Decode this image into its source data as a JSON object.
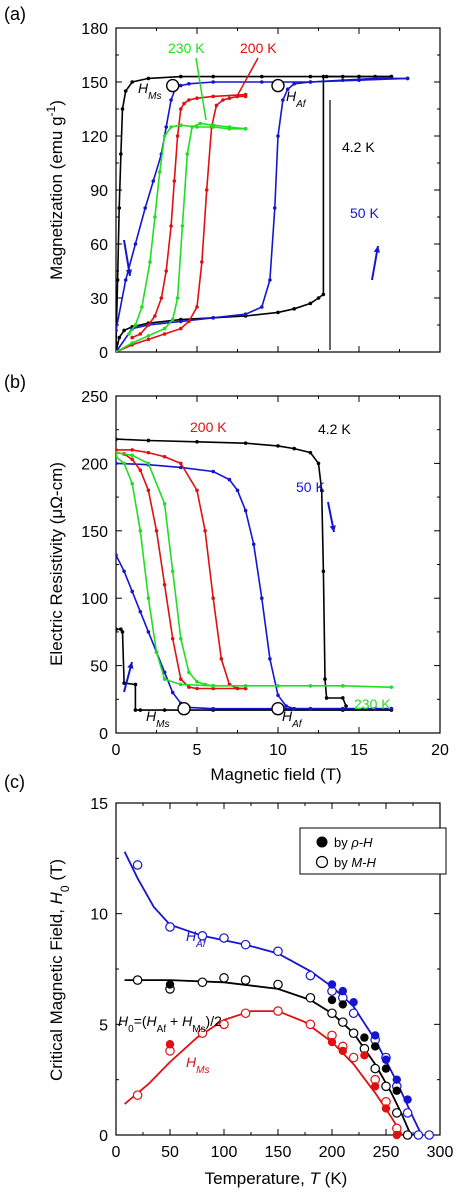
{
  "colors": {
    "black": "#000000",
    "blue": "#1515d0",
    "red": "#e01010",
    "green": "#22dd22"
  },
  "chart_data": [
    {
      "type": "line",
      "panel_label": "(a)",
      "xlabel": "",
      "ylabel": "Magnetization (emu g-1)",
      "xlim": [
        0,
        20
      ],
      "ylim": [
        0,
        180
      ],
      "yticks": [
        "0",
        "30",
        "60",
        "90",
        "120",
        "150",
        "180"
      ],
      "series": [
        {
          "name": "4.2 K",
          "color": "#000000",
          "x": [
            0,
            0.2,
            0.5,
            1,
            2,
            4,
            6,
            8,
            10,
            11,
            12,
            12.5,
            12.8,
            12.8,
            13,
            14,
            15,
            16,
            17
          ],
          "y": [
            0,
            8,
            12,
            14,
            16,
            18,
            19,
            20,
            22,
            24,
            27,
            30,
            32,
            153,
            153,
            153,
            153,
            153,
            153
          ]
        },
        {
          "name": "4.2 K down",
          "color": "#000000",
          "x": [
            17,
            15,
            12,
            9,
            6,
            4,
            2,
            1,
            0.6,
            0.4,
            0.3,
            0.2,
            0.1,
            0
          ],
          "y": [
            153,
            153,
            153,
            153,
            153,
            153,
            152,
            150,
            145,
            135,
            110,
            80,
            40,
            5
          ]
        },
        {
          "name": "50 K",
          "color": "#1515d0",
          "x": [
            0,
            1,
            2,
            4,
            6,
            8,
            9,
            9.5,
            9.8,
            10,
            10.3,
            10.6,
            11,
            12,
            14,
            16,
            18
          ],
          "y": [
            0,
            13,
            15,
            17,
            19,
            21,
            25,
            40,
            80,
            120,
            140,
            146,
            149,
            150,
            151,
            152,
            152
          ]
        },
        {
          "name": "50 K down",
          "color": "#1515d0",
          "x": [
            18,
            15,
            12,
            9,
            6,
            4.5,
            4,
            3.7,
            3.4,
            3.1,
            2.8,
            2.3,
            1.8,
            1.2,
            0.6,
            0
          ],
          "y": [
            152,
            151,
            150,
            150,
            150,
            149,
            148,
            147,
            140,
            125,
            110,
            95,
            80,
            60,
            40,
            12
          ]
        },
        {
          "name": "200 K",
          "color": "#e01010",
          "x": [
            0,
            1,
            2,
            3,
            4,
            4.5,
            5,
            5.3,
            5.6,
            5.9,
            6.2,
            6.6,
            7,
            7.5,
            8
          ],
          "y": [
            0,
            4,
            7,
            10,
            13,
            17,
            25,
            50,
            90,
            125,
            137,
            140,
            141,
            142,
            142
          ]
        },
        {
          "name": "200 K down",
          "color": "#e01010",
          "x": [
            8,
            6,
            5,
            4.5,
            4.2,
            4,
            3.8,
            3.6,
            3.4,
            3.1,
            2.8,
            2.4,
            2,
            1.5,
            1
          ],
          "y": [
            143,
            142,
            141,
            140,
            138,
            135,
            120,
            95,
            70,
            45,
            30,
            20,
            15,
            10,
            8
          ]
        },
        {
          "name": "230 K",
          "color": "#22dd22",
          "x": [
            0,
            1,
            2,
            3,
            3.5,
            3.8,
            4.1,
            4.4,
            4.7,
            5.2,
            6,
            7,
            8
          ],
          "y": [
            0,
            5,
            9,
            13,
            18,
            30,
            70,
            110,
            125,
            127,
            126,
            125,
            124
          ]
        },
        {
          "name": "230 K down",
          "color": "#22dd22",
          "x": [
            8,
            7,
            6,
            5,
            4,
            3.4,
            3,
            2.7,
            2.4,
            2.1,
            1.6,
            1.2,
            0.8
          ],
          "y": [
            124,
            124,
            125,
            125,
            126,
            125,
            120,
            100,
            75,
            50,
            25,
            15,
            10
          ]
        }
      ],
      "markers": [
        {
          "label": "HMs",
          "x": 3.5,
          "y": 148
        },
        {
          "label": "HAf",
          "x": 10.0,
          "y": 148
        }
      ]
    },
    {
      "type": "line",
      "panel_label": "(b)",
      "xlabel": "Magnetic field (T)",
      "ylabel": "Electric Resistivity (μΩ-cm)",
      "xlim": [
        0,
        20
      ],
      "ylim": [
        0,
        250
      ],
      "xticks": [
        "0",
        "5",
        "10",
        "15",
        "20"
      ],
      "yticks": [
        "0",
        "50",
        "100",
        "150",
        "200",
        "250"
      ],
      "series": [
        {
          "name": "4.2 K",
          "color": "#000000",
          "x": [
            0,
            2,
            5,
            8,
            10,
            11,
            12,
            12.5,
            12.7,
            12.8,
            12.9,
            13,
            14,
            14.2
          ],
          "y": [
            218,
            217,
            216,
            215,
            213,
            211,
            208,
            200,
            180,
            120,
            40,
            26,
            26,
            20
          ]
        },
        {
          "name": "4.2 K down",
          "color": "#000000",
          "x": [
            17,
            14,
            10,
            6,
            3,
            1.5,
            1.2,
            1.2,
            0.5,
            0.4,
            0.3,
            0
          ],
          "y": [
            17,
            17,
            17,
            17,
            17,
            17,
            17,
            36,
            37,
            75,
            77,
            77
          ]
        },
        {
          "name": "50 K",
          "color": "#1515d0",
          "x": [
            0,
            2,
            4,
            6,
            7,
            7.5,
            8,
            8.5,
            9,
            9.5,
            10,
            10.5,
            11,
            12,
            14,
            16,
            17
          ],
          "y": [
            200,
            199,
            197,
            194,
            188,
            180,
            165,
            140,
            100,
            55,
            28,
            20,
            18,
            18,
            18,
            18,
            18
          ]
        },
        {
          "name": "50 K down",
          "color": "#1515d0",
          "x": [
            17,
            14,
            10,
            6,
            4.5,
            4,
            3.5,
            3,
            2.5,
            2,
            1.5,
            1,
            0.5,
            0
          ],
          "y": [
            18,
            18,
            18,
            18,
            19,
            22,
            30,
            45,
            60,
            75,
            90,
            105,
            120,
            132
          ]
        },
        {
          "name": "200 K",
          "color": "#e01010",
          "x": [
            0,
            1,
            2,
            3,
            4,
            5,
            5.5,
            6,
            6.5,
            7,
            7.5,
            8
          ],
          "y": [
            210,
            210,
            208,
            205,
            200,
            180,
            150,
            100,
            55,
            36,
            33,
            33
          ]
        },
        {
          "name": "200 K down",
          "color": "#e01010",
          "x": [
            8,
            6,
            5,
            4.5,
            4,
            3.5,
            3,
            2.5,
            2,
            1.5,
            1,
            0.5,
            0
          ],
          "y": [
            33,
            33,
            33,
            34,
            40,
            70,
            110,
            150,
            180,
            195,
            203,
            207,
            208
          ]
        },
        {
          "name": "230 K",
          "color": "#22dd22",
          "x": [
            0,
            1,
            2,
            3,
            3.5,
            4,
            4.5,
            5,
            5.5,
            6,
            8,
            10,
            12,
            14,
            17
          ],
          "y": [
            208,
            206,
            200,
            170,
            120,
            70,
            45,
            38,
            36,
            35,
            35,
            35,
            35,
            35,
            34
          ]
        },
        {
          "name": "230 K down",
          "color": "#22dd22",
          "x": [
            6,
            4,
            3,
            2.5,
            2,
            1.5,
            1,
            0.5,
            0
          ],
          "y": [
            35,
            36,
            40,
            60,
            100,
            150,
            185,
            200,
            205
          ]
        }
      ],
      "markers": [
        {
          "label": "HMs",
          "x": 4.2,
          "y": 18
        },
        {
          "label": "HAf",
          "x": 10.0,
          "y": 18
        }
      ]
    },
    {
      "type": "scatter",
      "panel_label": "(c)",
      "xlabel": "Temperature, T (K)",
      "ylabel": "Critical Magnetic Field, H0 (T)",
      "xlim": [
        0,
        300
      ],
      "ylim": [
        0,
        15
      ],
      "xticks": [
        "0",
        "50",
        "100",
        "150",
        "200",
        "250",
        "300"
      ],
      "yticks": [
        "0",
        "5",
        "10",
        "15"
      ],
      "legend": {
        "position": "top-right",
        "items": [
          "by ρ-H",
          "by M-H"
        ]
      },
      "series": [
        {
          "name": "HAf",
          "color": "#1515d0",
          "fit_x": [
            8,
            20,
            35,
            50,
            80,
            120,
            150,
            180,
            200,
            220,
            240,
            260,
            275,
            283
          ],
          "fit_y": [
            12.8,
            11.6,
            10.3,
            9.5,
            9.0,
            8.6,
            8.2,
            7.4,
            6.7,
            5.8,
            4.3,
            2.4,
            0.8,
            0
          ],
          "open_x": [
            20,
            50,
            80,
            100,
            120,
            150,
            180,
            200,
            210,
            220,
            240,
            250,
            260,
            270,
            280,
            290
          ],
          "open_y": [
            12.2,
            9.4,
            9.0,
            8.9,
            8.6,
            8.3,
            7.2,
            6.5,
            6.2,
            5.5,
            4.3,
            3.5,
            2.2,
            1.0,
            0,
            0
          ],
          "filled_x": [
            200,
            210,
            220,
            240,
            250,
            260,
            270
          ],
          "filled_y": [
            6.8,
            6.5,
            6.0,
            4.5,
            3.4,
            2.5,
            1.6
          ]
        },
        {
          "name": "H0",
          "color": "#000000",
          "fit_x": [
            8,
            50,
            100,
            150,
            180,
            200,
            220,
            240,
            255,
            265,
            273
          ],
          "fit_y": [
            7.0,
            7.0,
            6.9,
            6.6,
            6.1,
            5.5,
            4.6,
            3.2,
            1.9,
            0.9,
            0
          ],
          "open_x": [
            20,
            50,
            80,
            100,
            120,
            150,
            180,
            200,
            210,
            220,
            230,
            240,
            250,
            260,
            270
          ],
          "open_y": [
            7.0,
            6.6,
            6.9,
            7.1,
            7.0,
            6.8,
            6.2,
            5.5,
            5.1,
            4.6,
            3.9,
            3.0,
            2.2,
            1.0,
            0
          ],
          "filled_x": [
            50,
            200,
            210,
            230,
            240,
            250,
            260
          ],
          "filled_y": [
            6.8,
            6.1,
            5.9,
            4.4,
            4.0,
            3.0,
            2.0
          ]
        },
        {
          "name": "HMs",
          "color": "#e01010",
          "fit_x": [
            8,
            30,
            50,
            75,
            100,
            125,
            150,
            175,
            200,
            220,
            240,
            255,
            265
          ],
          "fit_y": [
            1.4,
            2.3,
            3.3,
            4.4,
            5.2,
            5.6,
            5.6,
            5.1,
            4.2,
            3.2,
            1.9,
            0.8,
            0
          ],
          "open_x": [
            20,
            50,
            80,
            100,
            120,
            150,
            180,
            200,
            210,
            220,
            240,
            250,
            260
          ],
          "open_y": [
            1.8,
            3.8,
            4.6,
            5.0,
            5.5,
            5.6,
            5.0,
            4.5,
            4.0,
            3.5,
            2.5,
            1.5,
            0.3
          ],
          "filled_x": [
            50,
            200,
            210,
            230,
            240,
            250,
            260
          ],
          "filled_y": [
            4.1,
            4.2,
            3.8,
            3.6,
            2.2,
            1.2,
            0
          ]
        }
      ]
    }
  ],
  "annotations": {
    "a_230": "230 K",
    "a_200": "200 K",
    "a_42": "4.2 K",
    "a_50": "50 K",
    "a_hms_h": "H",
    "a_hms_sub": "Ms",
    "a_haf_h": "H",
    "a_haf_sub": "Af",
    "b_200": "200 K",
    "b_42": "4.2 K",
    "b_50": "50 K",
    "b_230": "230 K",
    "b_hms_h": "H",
    "b_hms_sub": "Ms",
    "b_haf_h": "H",
    "b_haf_sub": "Af",
    "c_haf_h": "H",
    "c_haf_sub": "Af",
    "c_hms_h": "H",
    "c_hms_sub": "Ms",
    "c_h0_h": "H",
    "c_h0_sub": "0",
    "c_h0_rest1": "=(",
    "c_h0_h2": "H",
    "c_h0_sub2": "Af",
    "c_h0_plus": " + ",
    "c_h0_h3": "H",
    "c_h0_sub3": "Ms",
    "c_h0_end": ")/2",
    "ylabel_a_main": "Magnetization (emu g",
    "ylabel_a_sup": "-1",
    "ylabel_a_end": ")",
    "ylabel_c_main": "Critical Magnetic Field, ",
    "ylabel_c_h": "H",
    "ylabel_c_sub": "0",
    "ylabel_c_end": " (T)",
    "xlabel_c_main": "Temperature, ",
    "xlabel_c_t": "T",
    "xlabel_c_end": " (K)",
    "legend_rho_pre": "by ",
    "legend_rho_sym": "ρ-H",
    "legend_m_pre": "by ",
    "legend_m_sym": "M-H"
  }
}
